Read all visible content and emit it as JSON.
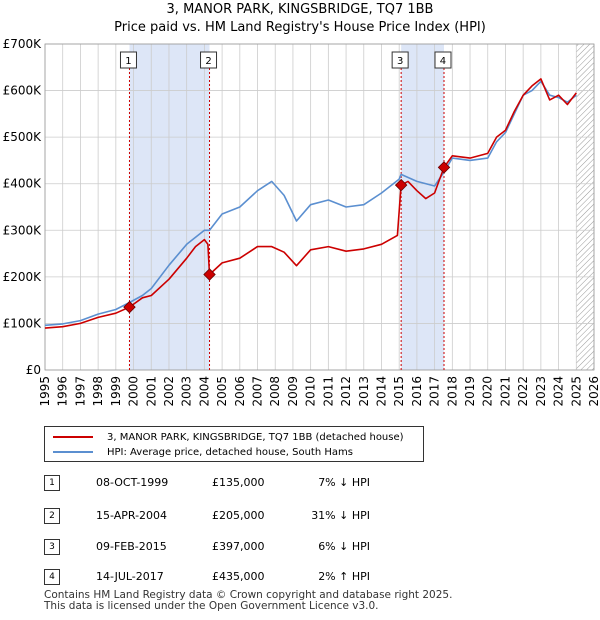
{
  "chart_data": {
    "type": "line",
    "title": "3, MANOR PARK, KINGSBRIDGE, TQ7 1BB",
    "subtitle": "Price paid vs. HM Land Registry's House Price Index (HPI)",
    "xlabel": "",
    "ylabel": "",
    "xlim": [
      1995,
      2026
    ],
    "ylim": [
      0,
      700000
    ],
    "x_ticks": [
      1995,
      1996,
      1997,
      1998,
      1999,
      2000,
      2001,
      2002,
      2003,
      2004,
      2005,
      2006,
      2007,
      2008,
      2009,
      2010,
      2011,
      2012,
      2013,
      2014,
      2015,
      2016,
      2017,
      2018,
      2019,
      2020,
      2021,
      2022,
      2023,
      2024,
      2025,
      2026
    ],
    "y_ticks": [
      {
        "value": 0,
        "label": "£0"
      },
      {
        "value": 100000,
        "label": "£100K"
      },
      {
        "value": 200000,
        "label": "£200K"
      },
      {
        "value": 300000,
        "label": "£300K"
      },
      {
        "value": 400000,
        "label": "£400K"
      },
      {
        "value": 500000,
        "label": "£500K"
      },
      {
        "value": 600000,
        "label": "£600K"
      },
      {
        "value": 700000,
        "label": "£700K"
      }
    ],
    "grid": true,
    "shaded_periods": [
      [
        1999.77,
        2004.29
      ],
      [
        2015.11,
        2017.53
      ]
    ],
    "forecast_from": 2025.0,
    "series": [
      {
        "name": "3, MANOR PARK, KINGSBRIDGE, TQ7 1BB (detached house)",
        "color": "#cc0000",
        "x": [
          1995.0,
          1996.0,
          1997.0,
          1998.0,
          1999.0,
          1999.77,
          2000.5,
          2001.0,
          2002.0,
          2003.0,
          2003.5,
          2004.0,
          2004.2,
          2004.29,
          2005.0,
          2006.0,
          2007.0,
          2007.8,
          2008.5,
          2009.2,
          2010.0,
          2011.0,
          2012.0,
          2013.0,
          2014.0,
          2014.9,
          2015.11,
          2015.5,
          2016.0,
          2016.5,
          2017.0,
          2017.53,
          2018.0,
          2019.0,
          2020.0,
          2020.5,
          2021.0,
          2021.5,
          2022.0,
          2022.5,
          2023.0,
          2023.5,
          2024.0,
          2024.5,
          2025.0
        ],
        "y": [
          90000,
          93000,
          100000,
          113000,
          122000,
          135000,
          155000,
          160000,
          195000,
          240000,
          265000,
          280000,
          270000,
          205000,
          230000,
          240000,
          265000,
          265000,
          253000,
          224000,
          258000,
          265000,
          255000,
          260000,
          270000,
          289000,
          397000,
          405000,
          385000,
          368000,
          380000,
          435000,
          460000,
          455000,
          465000,
          500000,
          515000,
          555000,
          590000,
          610000,
          625000,
          580000,
          590000,
          570000,
          595000
        ]
      },
      {
        "name": "HPI: Average price, detached house, South Hams",
        "color": "#5b8fd0",
        "x": [
          1995.0,
          1996.0,
          1997.0,
          1998.0,
          1999.0,
          1999.77,
          2000.5,
          2001.0,
          2002.0,
          2003.0,
          2004.0,
          2004.29,
          2005.0,
          2006.0,
          2007.0,
          2007.8,
          2008.5,
          2009.2,
          2010.0,
          2011.0,
          2012.0,
          2013.0,
          2014.0,
          2015.0,
          2015.11,
          2016.0,
          2017.0,
          2017.53,
          2018.0,
          2019.0,
          2020.0,
          2020.5,
          2021.0,
          2021.5,
          2022.0,
          2022.5,
          2023.0,
          2023.5,
          2024.0,
          2024.5,
          2025.0
        ],
        "y": [
          96000,
          99000,
          106000,
          120000,
          130000,
          145000,
          160000,
          175000,
          225000,
          270000,
          300000,
          300000,
          335000,
          350000,
          385000,
          405000,
          375000,
          320000,
          355000,
          365000,
          350000,
          355000,
          380000,
          410000,
          420000,
          405000,
          395000,
          425000,
          455000,
          450000,
          455000,
          490000,
          510000,
          550000,
          590000,
          600000,
          620000,
          590000,
          585000,
          575000,
          590000
        ]
      }
    ],
    "sale_markers": [
      {
        "label": "1",
        "x": 1999.77,
        "y": 135000
      },
      {
        "label": "2",
        "x": 2004.29,
        "y": 205000
      },
      {
        "label": "3",
        "x": 2015.11,
        "y": 397000
      },
      {
        "label": "4",
        "x": 2017.53,
        "y": 435000
      }
    ]
  },
  "legend": {
    "property_label": "3, MANOR PARK, KINGSBRIDGE, TQ7 1BB (detached house)",
    "hpi_label": "HPI: Average price, detached house, South Hams"
  },
  "sales": [
    {
      "num": "1",
      "date": "08-OCT-1999",
      "price": "£135,000",
      "hpi": "7% ↓ HPI"
    },
    {
      "num": "2",
      "date": "15-APR-2004",
      "price": "£205,000",
      "hpi": "31% ↓ HPI"
    },
    {
      "num": "3",
      "date": "09-FEB-2015",
      "price": "£397,000",
      "hpi": "6% ↓ HPI"
    },
    {
      "num": "4",
      "date": "14-JUL-2017",
      "price": "£435,000",
      "hpi": "2% ↑ HPI"
    }
  ],
  "footer": {
    "line1": "Contains HM Land Registry data © Crown copyright and database right 2025.",
    "line2": "This data is licensed under the Open Government Licence v3.0."
  },
  "colors": {
    "property": "#cc0000",
    "hpi": "#5b8fd0",
    "shade": "#dde6f7",
    "grid": "#cccccc"
  }
}
